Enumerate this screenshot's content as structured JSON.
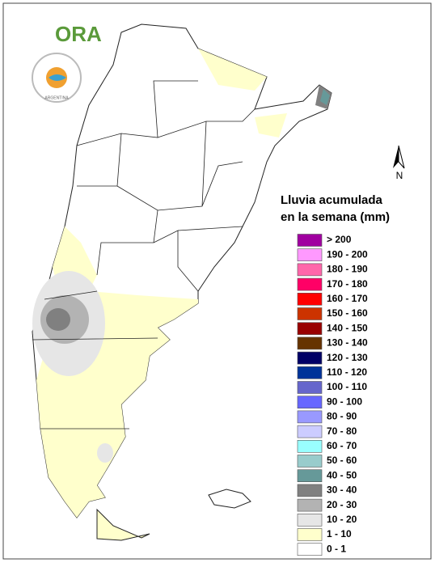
{
  "logo": {
    "text": "ORA",
    "seal_text": "ARGENTINA"
  },
  "north_label": "N",
  "legend": {
    "title_lines": [
      "Lluvia acumulada",
      "en la semana (mm)"
    ],
    "items": [
      {
        "label": "> 200",
        "color": "#a000a0"
      },
      {
        "label": "190 - 200",
        "color": "#ff99ff"
      },
      {
        "label": "180 - 190",
        "color": "#ff66aa"
      },
      {
        "label": "170 - 180",
        "color": "#ff0066"
      },
      {
        "label": "160 - 170",
        "color": "#ff0000"
      },
      {
        "label": "150 - 160",
        "color": "#cc3300"
      },
      {
        "label": "140 - 150",
        "color": "#990000"
      },
      {
        "label": "130 - 140",
        "color": "#663300"
      },
      {
        "label": "120 - 130",
        "color": "#000066"
      },
      {
        "label": "110 - 120",
        "color": "#003399"
      },
      {
        "label": "100 - 110",
        "color": "#6666cc"
      },
      {
        "label": "90 - 100",
        "color": "#6666ff"
      },
      {
        "label": "80 - 90",
        "color": "#9999ff"
      },
      {
        "label": "70 - 80",
        "color": "#ccccff"
      },
      {
        "label": "60 - 70",
        "color": "#99ffff"
      },
      {
        "label": "50 - 60",
        "color": "#99cccc"
      },
      {
        "label": "40 - 50",
        "color": "#669999"
      },
      {
        "label": "30 - 40",
        "color": "#808080"
      },
      {
        "label": "20 - 30",
        "color": "#b3b3b3"
      },
      {
        "label": "10 - 20",
        "color": "#e6e6e6"
      },
      {
        "label": "1 - 10",
        "color": "#ffffcc"
      },
      {
        "label": "0 - 1",
        "color": "#ffffff"
      }
    ]
  }
}
